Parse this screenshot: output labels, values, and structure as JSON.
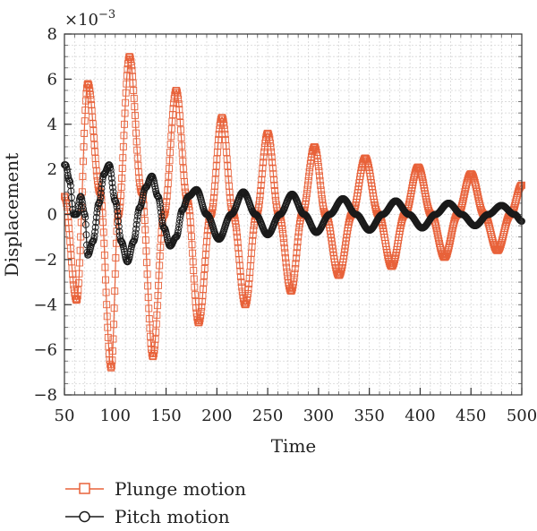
{
  "chart_data": {
    "type": "line",
    "xlabel": "Time",
    "ylabel": "Displacement",
    "y_exponent": "×10",
    "y_exponent_power": "−3",
    "xlim": [
      50,
      500
    ],
    "ylim": [
      -8,
      8
    ],
    "grid": true,
    "legend_position": "bottom-left, below plot",
    "x_ticks": [
      50,
      100,
      150,
      200,
      250,
      300,
      350,
      400,
      450,
      500
    ],
    "x_tick_labels": [
      "50",
      "100",
      "150",
      "200",
      "250",
      "300",
      "350",
      "400",
      "450",
      "500"
    ],
    "y_ticks": [
      -8,
      -6,
      -4,
      -2,
      0,
      2,
      4,
      6,
      8
    ],
    "y_tick_labels": [
      "−8",
      "−6",
      "−4",
      "−2",
      "0",
      "2",
      "4",
      "6",
      "8"
    ],
    "series": [
      {
        "name": "Plunge motion",
        "color": "#e8623a",
        "marker": "square",
        "x": [
          50,
          62,
          73,
          85,
          96,
          103,
          114,
          126,
          137,
          148,
          160,
          171,
          182,
          194,
          205,
          216,
          228,
          239,
          250,
          261,
          273,
          284,
          296,
          307,
          320,
          333,
          346,
          359,
          372,
          385,
          398,
          411,
          424,
          437,
          450,
          463,
          476,
          489,
          500
        ],
        "y": [
          0.8,
          -3.8,
          5.8,
          1.0,
          -6.8,
          0.0,
          7.0,
          1.0,
          -6.3,
          0.0,
          5.5,
          0.6,
          -4.8,
          0.0,
          4.3,
          0.0,
          -4.0,
          0.0,
          3.6,
          0.0,
          -3.4,
          0.0,
          3.0,
          0.0,
          -2.7,
          0.0,
          2.5,
          0.0,
          -2.3,
          0.0,
          2.1,
          0.0,
          -1.9,
          0.0,
          1.8,
          0.0,
          -1.6,
          0.0,
          1.3
        ]
      },
      {
        "name": "Pitch motion",
        "color": "#1a1a1a",
        "marker": "circle",
        "x": [
          51,
          55,
          59,
          62,
          66,
          70,
          73,
          78,
          84,
          89,
          94,
          100,
          106,
          112,
          118,
          124,
          130,
          136,
          142,
          148,
          154,
          160,
          166,
          172,
          180,
          190,
          202,
          214,
          226,
          238,
          250,
          262,
          274,
          286,
          298,
          311,
          324,
          337,
          350,
          363,
          376,
          389,
          402,
          415,
          428,
          441,
          454,
          467,
          480,
          493,
          500
        ],
        "y": [
          2.2,
          1.5,
          0.0,
          0.0,
          0.8,
          0.0,
          -1.8,
          -1.2,
          0.5,
          1.8,
          2.2,
          0.6,
          -1.2,
          -2.1,
          -1.2,
          0.3,
          1.2,
          1.7,
          0.8,
          -0.6,
          -1.4,
          -1.0,
          0.2,
          0.8,
          1.1,
          0.0,
          -1.1,
          0.0,
          1.0,
          0.0,
          -0.9,
          0.0,
          0.9,
          0.0,
          -0.8,
          0.0,
          0.7,
          0.0,
          -0.7,
          0.0,
          0.6,
          0.0,
          -0.6,
          0.0,
          0.5,
          0.0,
          -0.5,
          0.0,
          0.4,
          0.0,
          -0.3
        ]
      }
    ]
  }
}
